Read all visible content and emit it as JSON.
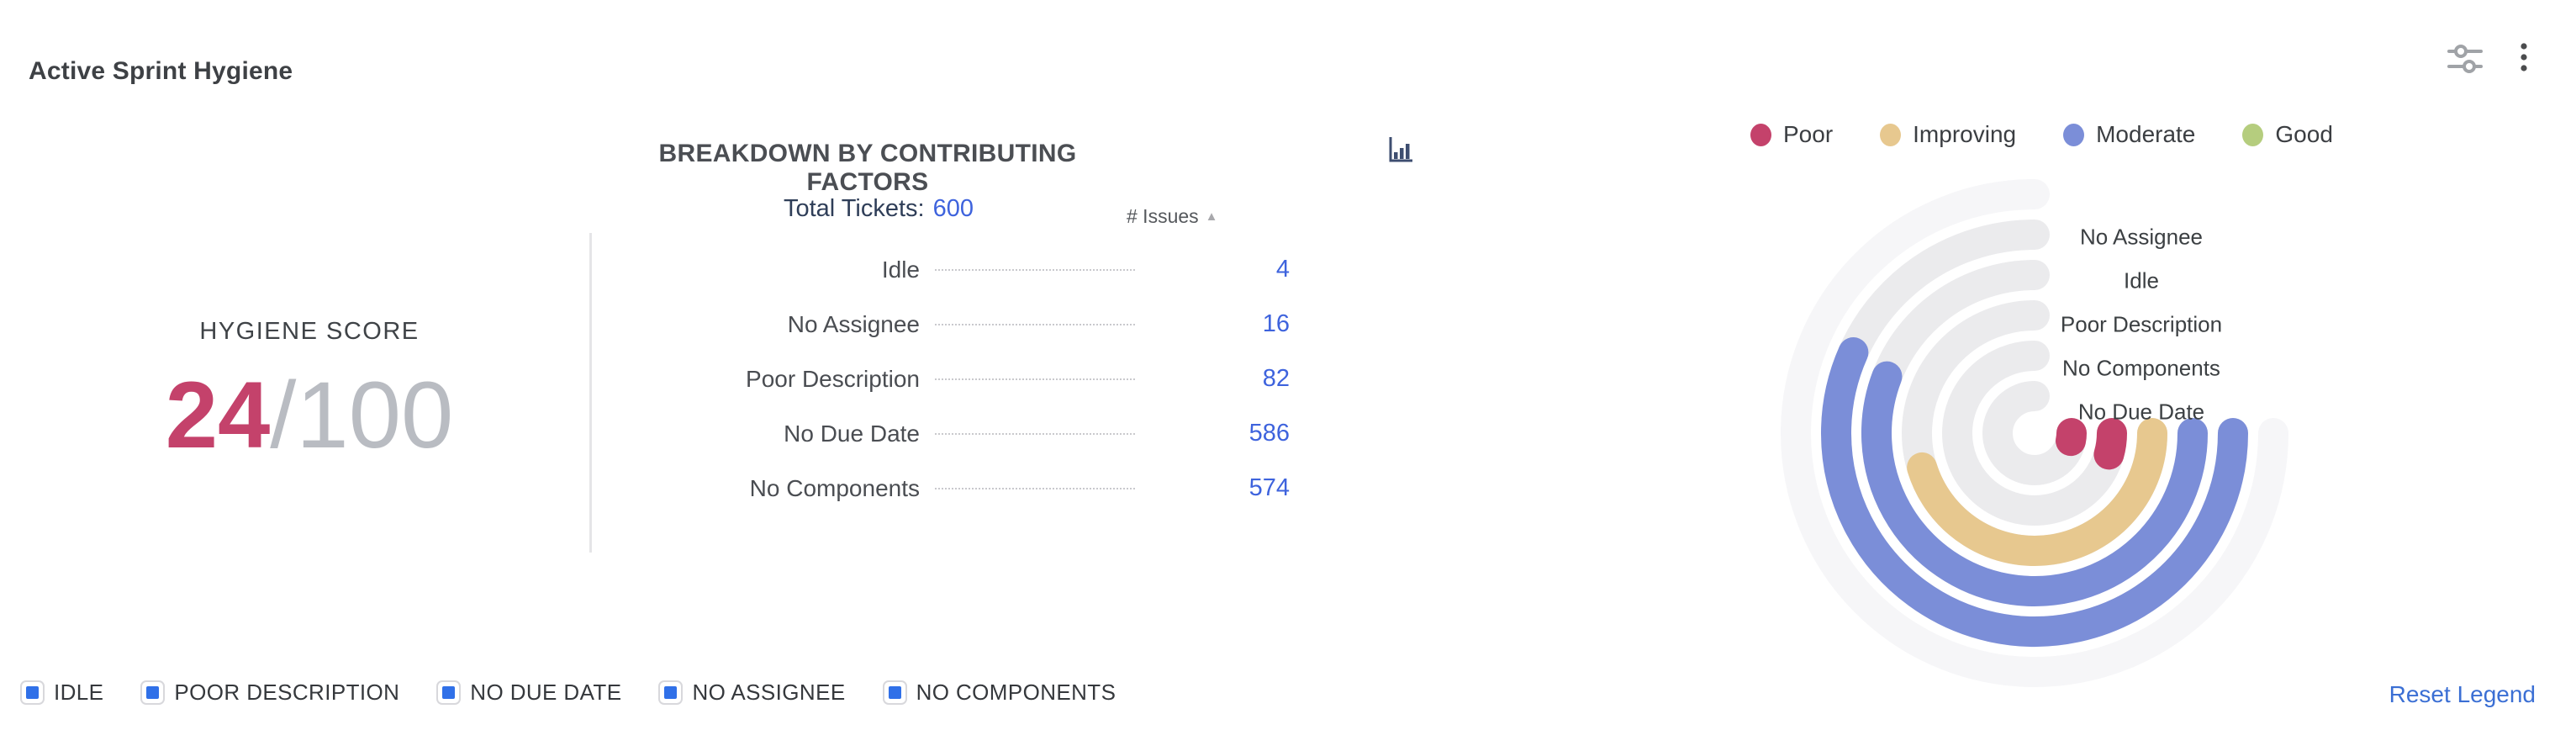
{
  "header": {
    "title": "Active Sprint Hygiene"
  },
  "score_panel": {
    "label": "HYGIENE SCORE",
    "score": "24",
    "slash": "/",
    "total": "100",
    "score_color": "#c4426b",
    "total_color": "#b9bcc2"
  },
  "breakdown": {
    "title": "BREAKDOWN BY CONTRIBUTING FACTORS",
    "total_label": "Total Tickets:",
    "total_value": "600",
    "issues_header": "# Issues",
    "sort_arrow": "▲",
    "rows": [
      {
        "label": "Idle",
        "value": "4"
      },
      {
        "label": "No Assignee",
        "value": "16"
      },
      {
        "label": "Poor Description",
        "value": "82"
      },
      {
        "label": "No Due Date",
        "value": "586"
      },
      {
        "label": "No Components",
        "value": "574"
      }
    ]
  },
  "status_legend": {
    "items": [
      {
        "label": "Poor",
        "color": "#c4426b"
      },
      {
        "label": "Improving",
        "color": "#e7c88f"
      },
      {
        "label": "Moderate",
        "color": "#7b8ed8"
      },
      {
        "label": "Good",
        "color": "#b5cd7e"
      }
    ]
  },
  "chart_data": {
    "type": "radial-bar",
    "title": "Hygiene factor scores",
    "angular_range_deg": [
      0,
      270
    ],
    "direction": "clockwise-from-east",
    "track_color": "#ebebed",
    "outer_guide_color": "#f6f6f8",
    "rings": [
      {
        "label": "No Assignee",
        "issues": 16,
        "sweep_deg": 204,
        "color": "#7b8ed8",
        "status": "Moderate"
      },
      {
        "label": "Idle",
        "issues": 4,
        "sweep_deg": 201,
        "color": "#7b8ed8",
        "status": "Moderate"
      },
      {
        "label": "Poor Description",
        "issues": 82,
        "sweep_deg": 163,
        "color": "#e7c88f",
        "status": "Improving"
      },
      {
        "label": "No Components",
        "issues": 574,
        "sweep_deg": 16,
        "color": "#c4426b",
        "status": "Poor"
      },
      {
        "label": "No Due Date",
        "issues": 586,
        "sweep_deg": 12,
        "color": "#c4426b",
        "status": "Poor"
      }
    ]
  },
  "bottom_legend": {
    "items": [
      {
        "label": "IDLE"
      },
      {
        "label": "POOR DESCRIPTION"
      },
      {
        "label": "NO DUE DATE"
      },
      {
        "label": "NO ASSIGNEE"
      },
      {
        "label": "NO COMPONENTS"
      }
    ],
    "reset_label": "Reset Legend"
  }
}
